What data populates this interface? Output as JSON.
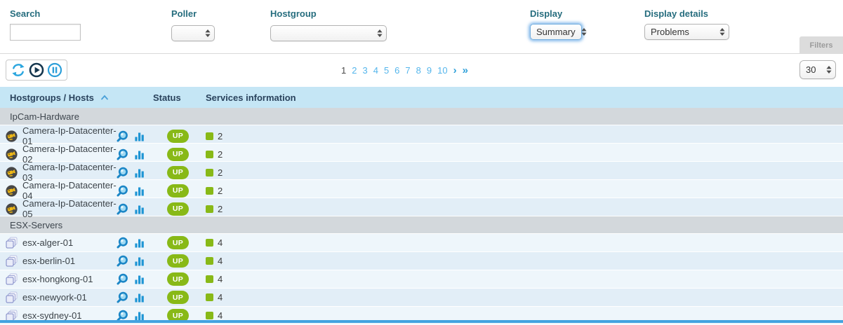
{
  "filters": {
    "search": {
      "label": "Search",
      "value": "",
      "placeholder": ""
    },
    "poller": {
      "label": "Poller",
      "value": ""
    },
    "hostgroup": {
      "label": "Hostgroup",
      "value": ""
    },
    "display": {
      "label": "Display",
      "value": "Summary",
      "focused": true
    },
    "display_details": {
      "label": "Display details",
      "value": "Problems"
    },
    "filters_button": "Filters"
  },
  "toolbar": {
    "icons": [
      "refresh-icon",
      "play-icon",
      "pause-icon"
    ],
    "pagination": {
      "pages": [
        "1",
        "2",
        "3",
        "4",
        "5",
        "6",
        "7",
        "8",
        "9",
        "10"
      ],
      "current": "1",
      "next_label": "›",
      "last_label": "»"
    },
    "page_size": "30"
  },
  "table": {
    "columns": [
      {
        "label": "Hostgroups / Hosts",
        "sort": "asc"
      },
      {
        "label": "Status"
      },
      {
        "label": "Services information"
      }
    ],
    "groups": [
      {
        "name": "IpCam-Hardware",
        "hosts": [
          {
            "name": "Camera-Ip-Datacenter-01",
            "icon": "camera-icon",
            "status": "UP",
            "services_ok": "2"
          },
          {
            "name": "Camera-Ip-Datacenter-02",
            "icon": "camera-icon",
            "status": "UP",
            "services_ok": "2"
          },
          {
            "name": "Camera-Ip-Datacenter-03",
            "icon": "camera-icon",
            "status": "UP",
            "services_ok": "2"
          },
          {
            "name": "Camera-Ip-Datacenter-04",
            "icon": "camera-icon",
            "status": "UP",
            "services_ok": "2"
          },
          {
            "name": "Camera-Ip-Datacenter-05",
            "icon": "camera-icon",
            "status": "UP",
            "services_ok": "2"
          }
        ]
      },
      {
        "name": "ESX-Servers",
        "hosts": [
          {
            "name": "esx-alger-01",
            "icon": "stacked-squares-icon",
            "status": "UP",
            "services_ok": "4"
          },
          {
            "name": "esx-berlin-01",
            "icon": "stacked-squares-icon",
            "status": "UP",
            "services_ok": "4"
          },
          {
            "name": "esx-hongkong-01",
            "icon": "stacked-squares-icon",
            "status": "UP",
            "services_ok": "4"
          },
          {
            "name": "esx-newyork-01",
            "icon": "stacked-squares-icon",
            "status": "UP",
            "services_ok": "4"
          },
          {
            "name": "esx-sydney-01",
            "icon": "stacked-squares-icon",
            "status": "UP",
            "services_ok": "4"
          }
        ]
      }
    ]
  },
  "colors": {
    "status_up_green": "#88b917",
    "link_blue": "#55b6ec",
    "accent_blue": "#2d9fd9",
    "header_band_blue": "#c5e6f5",
    "label_teal": "#266d7e"
  }
}
